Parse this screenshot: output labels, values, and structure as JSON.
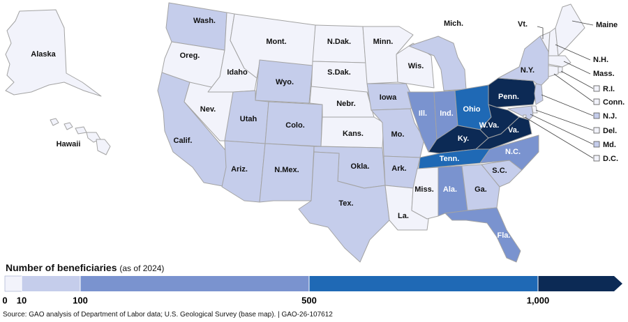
{
  "colors": {
    "bin0": "#f2f3fb",
    "bin1": "#c5cdeb",
    "bin2": "#7a93cf",
    "bin3": "#1f69b5",
    "bin4": "#0c2a55",
    "border": "#a3a3a3"
  },
  "states": {
    "WA": {
      "label": "Wash.",
      "bin": 1
    },
    "OR": {
      "label": "Oreg.",
      "bin": 0
    },
    "CA": {
      "label": "Calif.",
      "bin": 1
    },
    "NV": {
      "label": "Nev.",
      "bin": 0
    },
    "ID": {
      "label": "Idaho",
      "bin": 0
    },
    "MT": {
      "label": "Mont.",
      "bin": 0
    },
    "WY": {
      "label": "Wyo.",
      "bin": 1
    },
    "UT": {
      "label": "Utah",
      "bin": 1
    },
    "AZ": {
      "label": "Ariz.",
      "bin": 1
    },
    "CO": {
      "label": "Colo.",
      "bin": 1
    },
    "NM": {
      "label": "N.Mex.",
      "bin": 1
    },
    "ND": {
      "label": "N.Dak.",
      "bin": 0
    },
    "SD": {
      "label": "S.Dak.",
      "bin": 0
    },
    "NE": {
      "label": "Nebr.",
      "bin": 0
    },
    "KS": {
      "label": "Kans.",
      "bin": 0
    },
    "OK": {
      "label": "Okla.",
      "bin": 1
    },
    "TX": {
      "label": "Tex.",
      "bin": 1
    },
    "MN": {
      "label": "Minn.",
      "bin": 0
    },
    "IA": {
      "label": "Iowa",
      "bin": 1
    },
    "MO": {
      "label": "Mo.",
      "bin": 1
    },
    "AR": {
      "label": "Ark.",
      "bin": 1
    },
    "LA": {
      "label": "La.",
      "bin": 0
    },
    "WI": {
      "label": "Wis.",
      "bin": 0
    },
    "IL": {
      "label": "Ill.",
      "bin": 2
    },
    "MI": {
      "label": "Mich.",
      "bin": 1
    },
    "IN": {
      "label": "Ind.",
      "bin": 2
    },
    "OH": {
      "label": "Ohio",
      "bin": 3
    },
    "KY": {
      "label": "Ky.",
      "bin": 4
    },
    "TN": {
      "label": "Tenn.",
      "bin": 3
    },
    "MS": {
      "label": "Miss.",
      "bin": 0
    },
    "AL": {
      "label": "Ala.",
      "bin": 2
    },
    "GA": {
      "label": "Ga.",
      "bin": 1
    },
    "FL": {
      "label": "Fla.",
      "bin": 2
    },
    "SC": {
      "label": "S.C.",
      "bin": 1
    },
    "NC": {
      "label": "N.C.",
      "bin": 2
    },
    "VA": {
      "label": "Va.",
      "bin": 4
    },
    "WV": {
      "label": "W.Va.",
      "bin": 4
    },
    "PA": {
      "label": "Penn.",
      "bin": 4
    },
    "NY": {
      "label": "N.Y.",
      "bin": 1
    },
    "VT": {
      "label": "Vt.",
      "bin": 0
    },
    "NH": {
      "label": "N.H.",
      "bin": 0
    },
    "ME": {
      "label": "Maine",
      "bin": 0
    },
    "MA": {
      "label": "Mass.",
      "bin": 0
    },
    "RI": {
      "label": "R.I.",
      "bin": 0
    },
    "CT": {
      "label": "Conn.",
      "bin": 0
    },
    "NJ": {
      "label": "N.J.",
      "bin": 1
    },
    "DE": {
      "label": "Del.",
      "bin": 0
    },
    "MD": {
      "label": "Md.",
      "bin": 1
    },
    "DC": {
      "label": "D.C.",
      "bin": 0
    },
    "AK": {
      "label": "Alaska",
      "bin": 0
    },
    "HI": {
      "label": "Hawaii",
      "bin": 0
    }
  },
  "legend": {
    "title": "Number of beneficiaries",
    "subtitle": "(as of 2024)",
    "breaks": [
      0,
      10,
      100,
      500,
      1000
    ],
    "tick_labels": [
      "0",
      "10",
      "100",
      "500",
      "1,000"
    ]
  },
  "source": "Source: GAO analysis of Department of Labor data; U.S. Geological Survey (base map).  |  GAO-26-107612"
}
